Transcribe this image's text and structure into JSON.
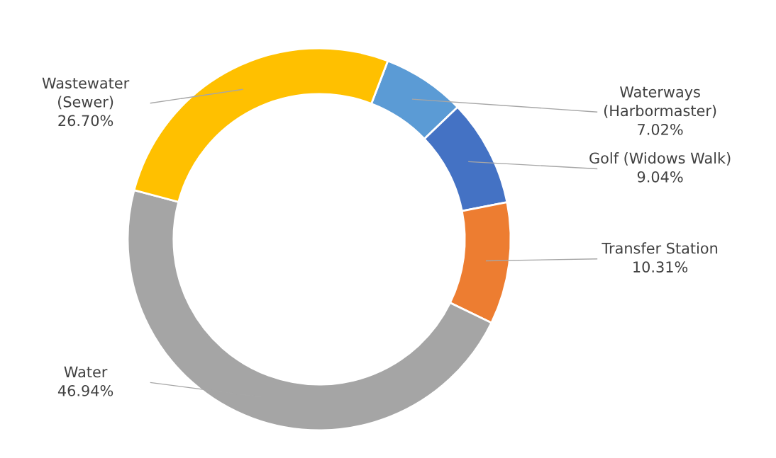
{
  "chart_data": {
    "type": "donut",
    "categories": [
      "Waterways\n(Harbormaster)",
      "Golf (Widows Walk)",
      "Transfer Station",
      "Water",
      "Wastewater\n(Sewer)"
    ],
    "values": [
      7.02,
      9.04,
      10.31,
      46.94,
      26.7
    ],
    "value_labels": [
      "7.02%",
      "9.04%",
      "10.31%",
      "46.94%",
      "26.70%"
    ],
    "colors": [
      "#5b9bd5",
      "#4472c4",
      "#ed7d31",
      "#a5a5a5",
      "#ffc000"
    ]
  }
}
